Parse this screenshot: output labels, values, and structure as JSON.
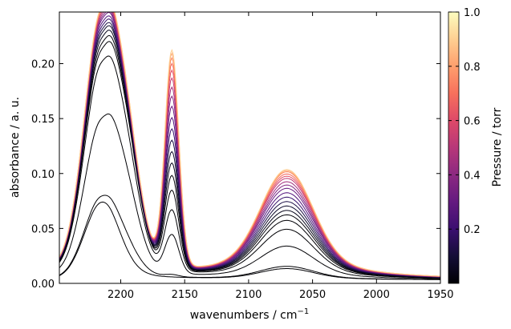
{
  "chart_data": {
    "type": "line",
    "xlabel": "wavenumbers / cm",
    "xlabel_sup": "−1",
    "ylabel": "absorbance / a. u.",
    "xlim": [
      2248,
      1950
    ],
    "ylim": [
      0,
      0.247
    ],
    "x_reversed": true,
    "xticks": [
      2200,
      2150,
      2100,
      2050,
      2000,
      1950
    ],
    "xtick_labels": [
      "2200",
      "2150",
      "2100",
      "2050",
      "2000",
      "1950"
    ],
    "yticks": [
      0.0,
      0.05,
      0.1,
      0.15,
      0.2
    ],
    "ytick_labels": [
      "0.00",
      "0.05",
      "0.10",
      "0.15",
      "0.20"
    ],
    "grid": false,
    "colorbar": {
      "label": "Pressure / torr",
      "colormap": "magma",
      "range": [
        0.0,
        1.0
      ],
      "ticks": [
        0.2,
        0.4,
        0.6,
        0.8,
        1.0
      ],
      "tick_labels": [
        "0.2",
        "0.4",
        "0.6",
        "0.8",
        "1.0"
      ]
    },
    "series": [
      {
        "pressure": 0.0,
        "color": "#000004",
        "peak_wavenumbers": [
          2215,
          2160,
          2195,
          2070,
          2222
        ],
        "values": [
          0.073,
          0.0,
          0.002,
          0.01,
          0.003
        ]
      },
      {
        "pressure": 0.0,
        "color": "#000004",
        "peak_wavenumbers": [
          2215,
          2160,
          2195,
          2070,
          2222
        ],
        "values": [
          0.078,
          0.002,
          0.015,
          0.012,
          0.003
        ]
      },
      {
        "pressure": 0.02,
        "color": "#000004",
        "peak_wavenumbers": [
          2215,
          2160,
          2195,
          2070,
          2222
        ],
        "values": [
          0.147,
          0.035,
          0.05,
          0.03,
          0.003
        ]
      },
      {
        "pressure": 0.03,
        "color": "#000004",
        "peak_wavenumbers": [
          2215,
          2160,
          2195,
          2070,
          2222
        ],
        "values": [
          0.197,
          0.055,
          0.07,
          0.045,
          0.003
        ]
      },
      {
        "pressure": 0.04,
        "color": "#010005",
        "peak_wavenumbers": [
          2215,
          2160,
          2195,
          2070,
          2222
        ],
        "values": [
          0.208,
          0.072,
          0.079,
          0.053,
          0.003
        ]
      },
      {
        "pressure": 0.05,
        "color": "#020108",
        "peak_wavenumbers": [
          2215,
          2160,
          2195,
          2070,
          2222
        ],
        "values": [
          0.213,
          0.085,
          0.081,
          0.058,
          0.003
        ]
      },
      {
        "pressure": 0.07,
        "color": "#06051a",
        "peak_wavenumbers": [
          2215,
          2160,
          2195,
          2070,
          2222
        ],
        "values": [
          0.218,
          0.096,
          0.082,
          0.062,
          0.003
        ]
      },
      {
        "pressure": 0.1,
        "color": "#0d0a2b",
        "peak_wavenumbers": [
          2215,
          2160,
          2195,
          2070,
          2222
        ],
        "values": [
          0.222,
          0.106,
          0.083,
          0.066,
          0.003
        ]
      },
      {
        "pressure": 0.15,
        "color": "#1d1147",
        "peak_wavenumbers": [
          2215,
          2160,
          2195,
          2070,
          2222
        ],
        "values": [
          0.225,
          0.116,
          0.083,
          0.07,
          0.003
        ]
      },
      {
        "pressure": 0.21,
        "color": "#36106b",
        "peak_wavenumbers": [
          2215,
          2160,
          2195,
          2070,
          2222
        ],
        "values": [
          0.228,
          0.126,
          0.084,
          0.074,
          0.003
        ]
      },
      {
        "pressure": 0.28,
        "color": "#51127c",
        "peak_wavenumbers": [
          2215,
          2160,
          2195,
          2070,
          2222
        ],
        "values": [
          0.231,
          0.136,
          0.084,
          0.078,
          0.003
        ]
      },
      {
        "pressure": 0.35,
        "color": "#6a1c81",
        "peak_wavenumbers": [
          2215,
          2160,
          2195,
          2070,
          2222
        ],
        "values": [
          0.234,
          0.146,
          0.085,
          0.082,
          0.003
        ]
      },
      {
        "pressure": 0.42,
        "color": "#832681",
        "peak_wavenumbers": [
          2215,
          2160,
          2195,
          2070,
          2222
        ],
        "values": [
          0.236,
          0.155,
          0.085,
          0.085,
          0.003
        ]
      },
      {
        "pressure": 0.5,
        "color": "#a3307e",
        "peak_wavenumbers": [
          2215,
          2160,
          2195,
          2070,
          2222
        ],
        "values": [
          0.238,
          0.163,
          0.086,
          0.088,
          0.003
        ]
      },
      {
        "pressure": 0.58,
        "color": "#c43c75",
        "peak_wavenumbers": [
          2215,
          2160,
          2195,
          2070,
          2222
        ],
        "values": [
          0.24,
          0.171,
          0.086,
          0.091,
          0.003
        ]
      },
      {
        "pressure": 0.65,
        "color": "#e24d66",
        "peak_wavenumbers": [
          2215,
          2160,
          2195,
          2070,
          2222
        ],
        "values": [
          0.242,
          0.178,
          0.087,
          0.093,
          0.003
        ]
      },
      {
        "pressure": 0.72,
        "color": "#f4685c",
        "peak_wavenumbers": [
          2215,
          2160,
          2195,
          2070,
          2222
        ],
        "values": [
          0.243,
          0.184,
          0.087,
          0.095,
          0.003
        ]
      },
      {
        "pressure": 0.8,
        "color": "#fb8861",
        "peak_wavenumbers": [
          2215,
          2160,
          2195,
          2070,
          2222
        ],
        "values": [
          0.244,
          0.189,
          0.087,
          0.097,
          0.003
        ]
      },
      {
        "pressure": 0.88,
        "color": "#feaa74",
        "peak_wavenumbers": [
          2215,
          2160,
          2195,
          2070,
          2222
        ],
        "values": [
          0.245,
          0.193,
          0.088,
          0.098,
          0.003
        ]
      },
      {
        "pressure": 0.95,
        "color": "#fecf92",
        "peak_wavenumbers": [
          2215,
          2160,
          2195,
          2070,
          2222
        ],
        "values": [
          0.246,
          0.196,
          0.088,
          0.099,
          0.003
        ]
      }
    ]
  }
}
